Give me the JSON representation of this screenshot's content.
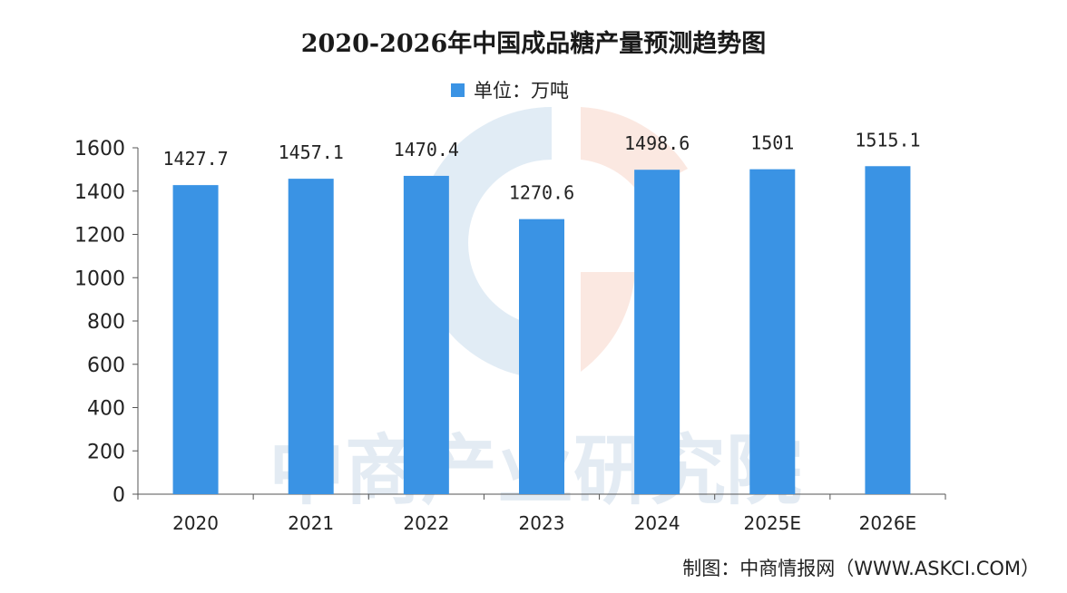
{
  "chart_data": {
    "type": "bar",
    "title": "2020-2026年中国成品糖产量预测趋势图",
    "legend": "单位：万吨",
    "legend_position": "top-center",
    "categories": [
      "2020",
      "2021",
      "2022",
      "2023",
      "2024",
      "2025E",
      "2026E"
    ],
    "values": [
      1427.7,
      1457.1,
      1470.4,
      1270.6,
      1498.6,
      1501,
      1515.1
    ],
    "value_labels": [
      "1427.7",
      "1457.1",
      "1470.4",
      "1270.6",
      "1498.6",
      "1501",
      "1515.1"
    ],
    "y_ticks": [
      0,
      200,
      400,
      600,
      800,
      1000,
      1200,
      1400,
      1600
    ],
    "ylim": [
      0,
      1600
    ],
    "xlabel": "",
    "ylabel": "",
    "grid": false,
    "bar_color": "#3a93e4",
    "watermark_text": "中商产业研究院",
    "credit": "制图：中商情报网（WWW.ASKCI.COM）"
  }
}
